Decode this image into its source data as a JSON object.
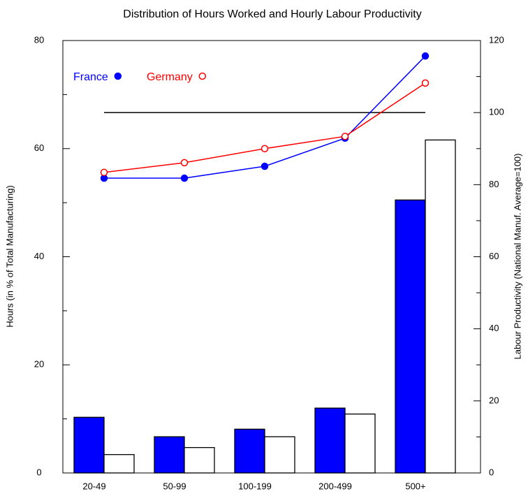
{
  "chart_data": {
    "type": "bar",
    "title": "Distribution of Hours Worked and Hourly Labour Productivity",
    "y_label": "Hours (in % of Total Manufacturing)",
    "y2_label": "Labour Productivity (National Manuf. Average=100)",
    "categories": [
      "20-49",
      "50-99",
      "100-199",
      "200-499",
      "500+"
    ],
    "series": [
      {
        "type": "bar",
        "axis": "y",
        "color": "#0000ff",
        "values": [
          10.3,
          6.7,
          8.1,
          12.0,
          50.5
        ]
      },
      {
        "type": "bar",
        "axis": "y",
        "color": "#ffffff",
        "values": [
          3.4,
          4.7,
          6.7,
          10.9,
          61.6
        ]
      },
      {
        "type": "line",
        "axis": "y2",
        "name": "France",
        "color": "#0000ff",
        "marker": "filled",
        "values": [
          81.8,
          81.8,
          85.1,
          92.9,
          115.7
        ]
      },
      {
        "type": "line",
        "axis": "y2",
        "name": "Germany",
        "color": "#ff0000",
        "marker": "open",
        "values": [
          83.4,
          86.1,
          90.0,
          93.4,
          108.2
        ]
      }
    ],
    "reference_line": {
      "axis": "y2",
      "value": 100,
      "color": "#000000"
    },
    "ylim": [
      0,
      80
    ],
    "yticks": [
      0,
      20,
      40,
      60,
      80
    ],
    "yticks_minor": [
      10,
      30,
      50,
      70
    ],
    "y2lim": [
      0,
      120
    ],
    "y2ticks": [
      0,
      20,
      40,
      60,
      80,
      100,
      120
    ],
    "y2ticks_minor": [
      10,
      30,
      50,
      70,
      90,
      110
    ],
    "legend": "upper left",
    "grid": false
  }
}
